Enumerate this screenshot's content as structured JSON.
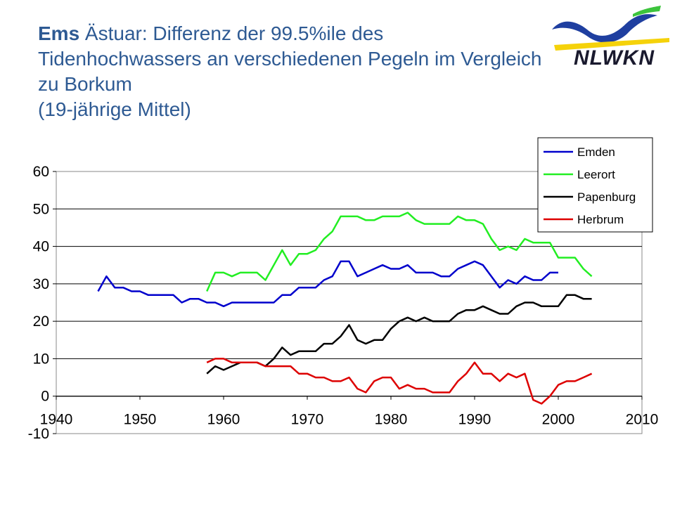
{
  "header": {
    "title_bold": "Ems",
    "title_rest": " Ästuar: Differenz der 99.5%ile des Tidenhochwassers an verschiedenen Pegeln im Vergleich zu Borkum",
    "subtitle": "(19-jährige Mittel)"
  },
  "logo": {
    "text": "NLWKN",
    "colors": {
      "blue": "#1f3fa0",
      "yellow": "#f5d20a",
      "green": "#3cc43c"
    }
  },
  "chart_data": {
    "type": "line",
    "title": "",
    "xlabel": "",
    "ylabel": "",
    "xlim": [
      1940,
      2010
    ],
    "ylim": [
      -10,
      60
    ],
    "xticks": [
      1940,
      1950,
      1960,
      1970,
      1980,
      1990,
      2000,
      2010
    ],
    "yticks": [
      -10,
      0,
      10,
      20,
      30,
      40,
      50,
      60
    ],
    "grid": "horizontal",
    "legend_position": "top-right",
    "series": [
      {
        "name": "Emden",
        "color": "#0000cc",
        "x": [
          1945,
          1946,
          1947,
          1948,
          1949,
          1950,
          1951,
          1952,
          1953,
          1954,
          1955,
          1956,
          1957,
          1958,
          1959,
          1960,
          1961,
          1962,
          1963,
          1964,
          1965,
          1966,
          1967,
          1968,
          1969,
          1970,
          1971,
          1972,
          1973,
          1974,
          1975,
          1976,
          1977,
          1978,
          1979,
          1980,
          1981,
          1982,
          1983,
          1984,
          1985,
          1986,
          1987,
          1988,
          1989,
          1990,
          1991,
          1992,
          1993,
          1994,
          1995,
          1996,
          1997,
          1998,
          1999,
          2000
        ],
        "y": [
          28,
          32,
          29,
          29,
          28,
          28,
          27,
          27,
          27,
          27,
          25,
          26,
          26,
          25,
          25,
          24,
          25,
          25,
          25,
          25,
          25,
          25,
          27,
          27,
          29,
          29,
          29,
          31,
          32,
          36,
          36,
          32,
          33,
          34,
          35,
          34,
          34,
          35,
          33,
          33,
          33,
          32,
          32,
          34,
          35,
          36,
          35,
          32,
          29,
          31,
          30,
          32,
          31,
          31,
          33,
          33
        ]
      },
      {
        "name": "Leerort",
        "color": "#22ee22",
        "x": [
          1958,
          1959,
          1960,
          1961,
          1962,
          1963,
          1964,
          1965,
          1966,
          1967,
          1968,
          1969,
          1970,
          1971,
          1972,
          1973,
          1974,
          1975,
          1976,
          1977,
          1978,
          1979,
          1980,
          1981,
          1982,
          1983,
          1984,
          1985,
          1986,
          1987,
          1988,
          1989,
          1990,
          1991,
          1992,
          1993,
          1994,
          1995,
          1996,
          1997,
          1998,
          1999,
          2000,
          2001,
          2002,
          2003,
          2004
        ],
        "y": [
          28,
          33,
          33,
          32,
          33,
          33,
          33,
          31,
          35,
          39,
          35,
          38,
          38,
          39,
          42,
          44,
          48,
          48,
          48,
          47,
          47,
          48,
          48,
          48,
          49,
          47,
          46,
          46,
          46,
          46,
          48,
          47,
          47,
          46,
          42,
          39,
          40,
          39,
          42,
          41,
          41,
          41,
          37,
          37,
          37,
          34,
          32
        ]
      },
      {
        "name": "Papenburg",
        "color": "#000000",
        "x": [
          1958,
          1959,
          1960,
          1961,
          1962,
          1963,
          1964,
          1965,
          1966,
          1967,
          1968,
          1969,
          1970,
          1971,
          1972,
          1973,
          1974,
          1975,
          1976,
          1977,
          1978,
          1979,
          1980,
          1981,
          1982,
          1983,
          1984,
          1985,
          1986,
          1987,
          1988,
          1989,
          1990,
          1991,
          1992,
          1993,
          1994,
          1995,
          1996,
          1997,
          1998,
          1999,
          2000,
          2001,
          2002,
          2003,
          2004
        ],
        "y": [
          6,
          8,
          7,
          8,
          9,
          9,
          9,
          8,
          10,
          13,
          11,
          12,
          12,
          12,
          14,
          14,
          16,
          19,
          15,
          14,
          15,
          15,
          18,
          20,
          21,
          20,
          21,
          20,
          20,
          20,
          22,
          23,
          23,
          24,
          23,
          22,
          22,
          24,
          25,
          25,
          24,
          24,
          24,
          27,
          27,
          26,
          26
        ]
      },
      {
        "name": "Herbrum",
        "color": "#dd0000",
        "x": [
          1958,
          1959,
          1960,
          1961,
          1962,
          1963,
          1964,
          1965,
          1966,
          1967,
          1968,
          1969,
          1970,
          1971,
          1972,
          1973,
          1974,
          1975,
          1976,
          1977,
          1978,
          1979,
          1980,
          1981,
          1982,
          1983,
          1984,
          1985,
          1986,
          1987,
          1988,
          1989,
          1990,
          1991,
          1992,
          1993,
          1994,
          1995,
          1996,
          1997,
          1998,
          1999,
          2000,
          2001,
          2002,
          2003,
          2004
        ],
        "y": [
          9,
          10,
          10,
          9,
          9,
          9,
          9,
          8,
          8,
          8,
          8,
          6,
          6,
          5,
          5,
          4,
          4,
          5,
          2,
          1,
          4,
          5,
          5,
          2,
          3,
          2,
          2,
          1,
          1,
          1,
          4,
          6,
          9,
          6,
          6,
          4,
          6,
          5,
          6,
          -1,
          -2,
          0,
          3,
          4,
          4,
          5,
          6
        ]
      }
    ]
  }
}
